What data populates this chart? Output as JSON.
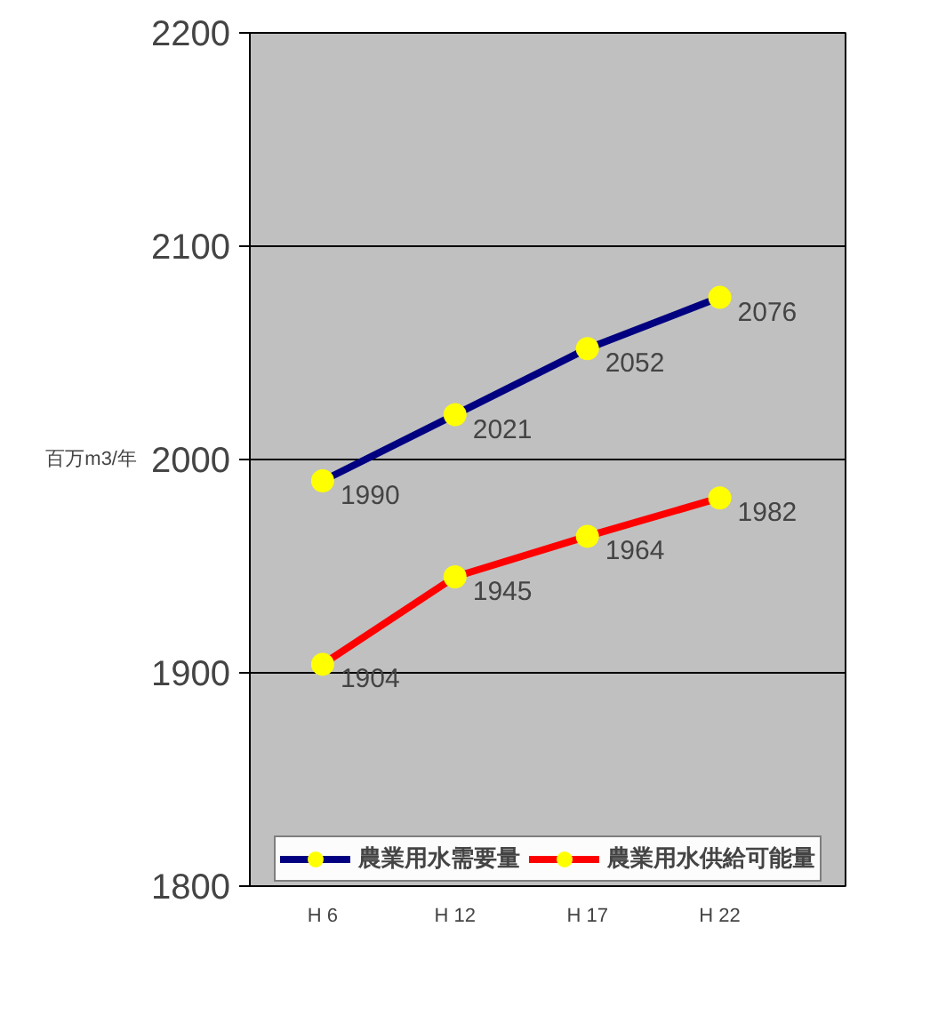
{
  "chart_data": {
    "type": "line",
    "ylabel": "百万m3/年",
    "categories": [
      "H 6",
      "H 12",
      "H 17",
      "H 22"
    ],
    "series": [
      {
        "name": "農業用水需要量",
        "color": "#000080",
        "values": [
          1990,
          2021,
          2052,
          2076
        ]
      },
      {
        "name": "農業用水供給可能量",
        "color": "#ff0000",
        "values": [
          1904,
          1945,
          1964,
          1982
        ]
      }
    ],
    "ylim": [
      1800,
      2200
    ],
    "yticks": [
      1800,
      1900,
      2000,
      2100,
      2200
    ],
    "grid": "y",
    "legend": "bottom",
    "marker": "circle",
    "line_style": "solid",
    "data_labels": true
  }
}
